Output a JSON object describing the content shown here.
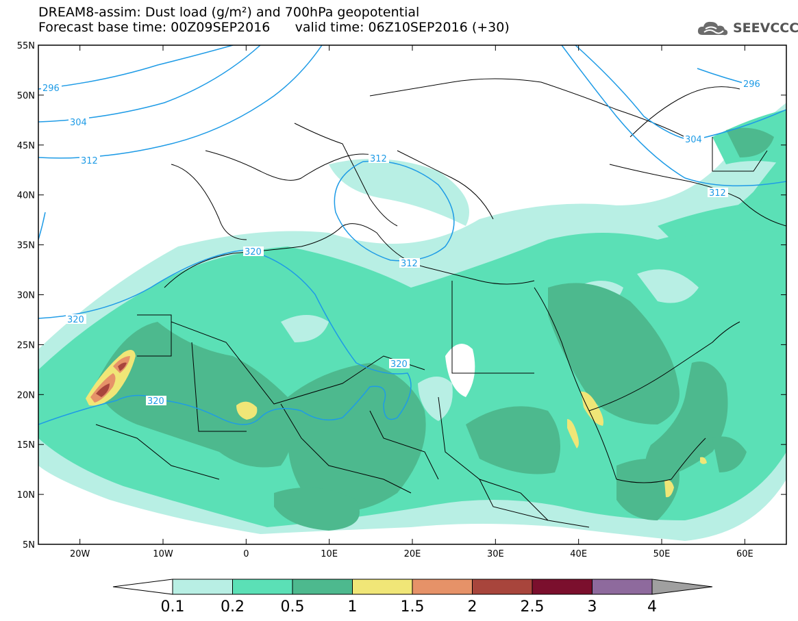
{
  "title": {
    "line1": "DREAM8-assim: Dust load (g/m²) and 700hPa geopotential",
    "line2": "Forecast base time: 00Z09SEP2016      valid time: 06Z10SEP2016 (+30)"
  },
  "logo": {
    "text": "SEEVCCC",
    "icon": "cloud-logo-icon"
  },
  "axes": {
    "lat_labels": [
      "55N",
      "50N",
      "45N",
      "40N",
      "35N",
      "30N",
      "25N",
      "20N",
      "15N",
      "10N",
      "5N"
    ],
    "lon_labels": [
      "20W",
      "10W",
      "0",
      "10E",
      "20E",
      "30E",
      "40E",
      "50E",
      "60E"
    ]
  },
  "map_extent": {
    "lon_min": -25,
    "lon_max": 65,
    "lat_min": 5,
    "lat_max": 55
  },
  "contour_labels": [
    "296",
    "304",
    "312",
    "312",
    "312",
    "320",
    "320",
    "320",
    "320",
    "304",
    "312",
    "296"
  ],
  "colorbar": {
    "labels": [
      "0.1",
      "0.2",
      "0.5",
      "1",
      "1.5",
      "2",
      "2.5",
      "3",
      "4"
    ],
    "colors": [
      "#b8efe4",
      "#5be0b6",
      "#4db98e",
      "#f0e677",
      "#e69268",
      "#a8453c",
      "#7b0f2d",
      "#8e6a9d"
    ],
    "arrow_left_color": "#ffffff",
    "arrow_right_color": "#a0a0a0"
  },
  "colors": {
    "contour": "#1e9be6",
    "land_border": "#000000",
    "background": "#ffffff"
  }
}
